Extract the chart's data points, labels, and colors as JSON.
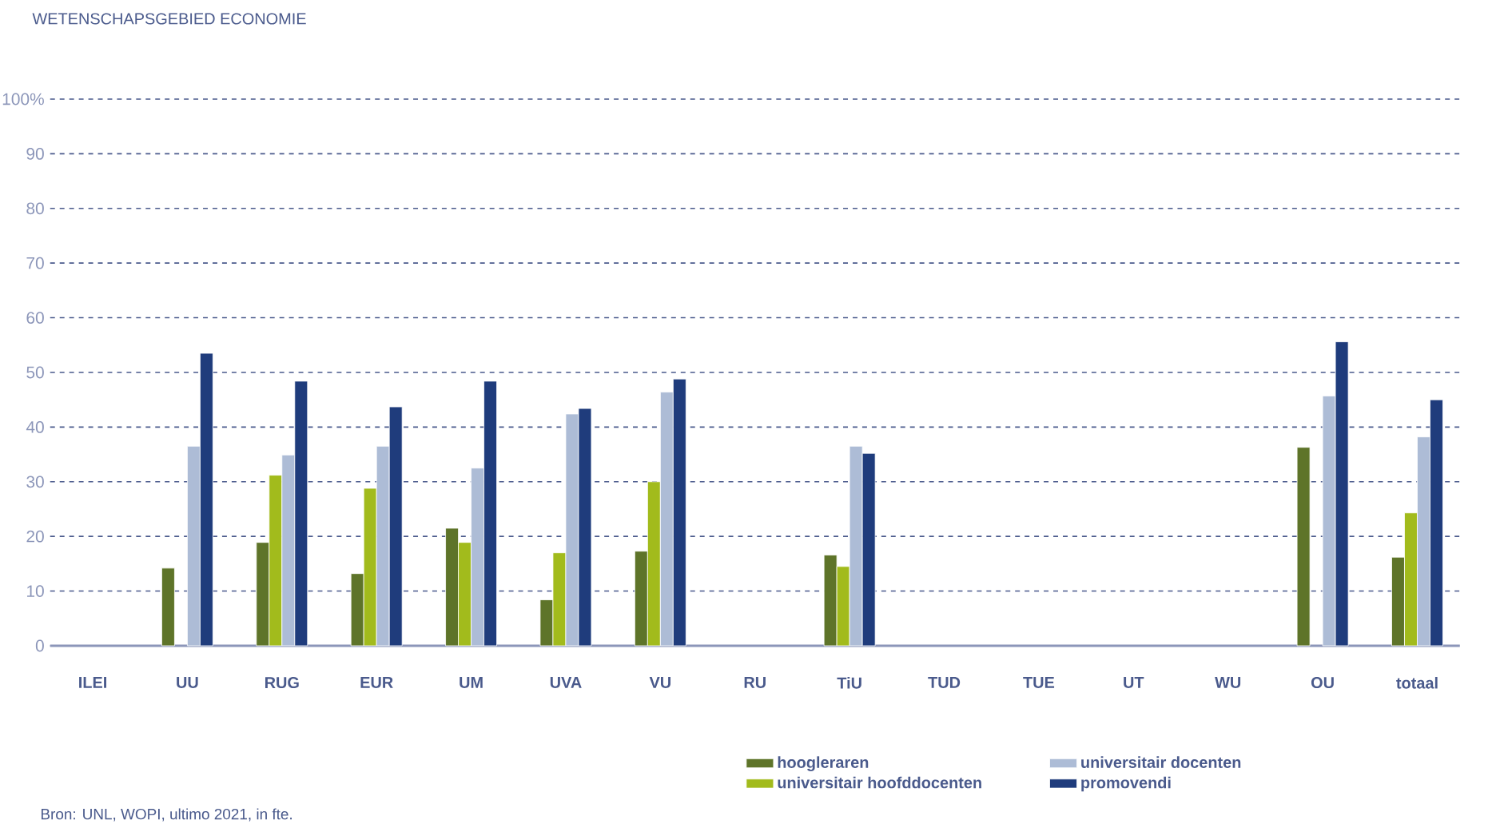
{
  "chart_data": {
    "type": "bar",
    "title": "WETENSCHAPSGEBIED ECONOMIE",
    "categories": [
      "ILEI",
      "UU",
      "RUG",
      "EUR",
      "UM",
      "UVA",
      "VU",
      "RU",
      "TiU",
      "TUD",
      "TUE",
      "UT",
      "WU",
      "OU",
      "totaal"
    ],
    "series": [
      {
        "name": "hoogleraren",
        "color": "#5e7429",
        "values": [
          null,
          14.2,
          18.9,
          13.2,
          21.5,
          8.4,
          17.3,
          null,
          16.6,
          null,
          null,
          null,
          null,
          36.3,
          16.2
        ]
      },
      {
        "name": "universitair hoofddocenten",
        "color": "#a2bb1c",
        "values": [
          null,
          null,
          31.2,
          28.8,
          18.9,
          17.0,
          30.0,
          null,
          14.5,
          null,
          null,
          null,
          null,
          null,
          24.3
        ]
      },
      {
        "name": "universitair docenten",
        "color": "#adbcd6",
        "values": [
          null,
          36.5,
          34.9,
          36.5,
          32.5,
          42.4,
          46.4,
          null,
          36.5,
          null,
          null,
          null,
          null,
          45.7,
          38.2
        ]
      },
      {
        "name": "promovendi",
        "color": "#1f3c7c",
        "values": [
          null,
          53.5,
          48.4,
          43.7,
          48.4,
          43.4,
          48.8,
          null,
          35.2,
          null,
          null,
          null,
          null,
          55.6,
          45.0
        ]
      }
    ],
    "ylim": [
      0,
      100
    ],
    "yticks": [
      0,
      10,
      20,
      30,
      40,
      50,
      60,
      70,
      80,
      90,
      {
        "value": 100,
        "label": "100%"
      }
    ],
    "grid": "y",
    "legend": "bottom",
    "annotations": [
      "Bron: UNL, WOPI, ultimo 2021, in fte."
    ]
  }
}
